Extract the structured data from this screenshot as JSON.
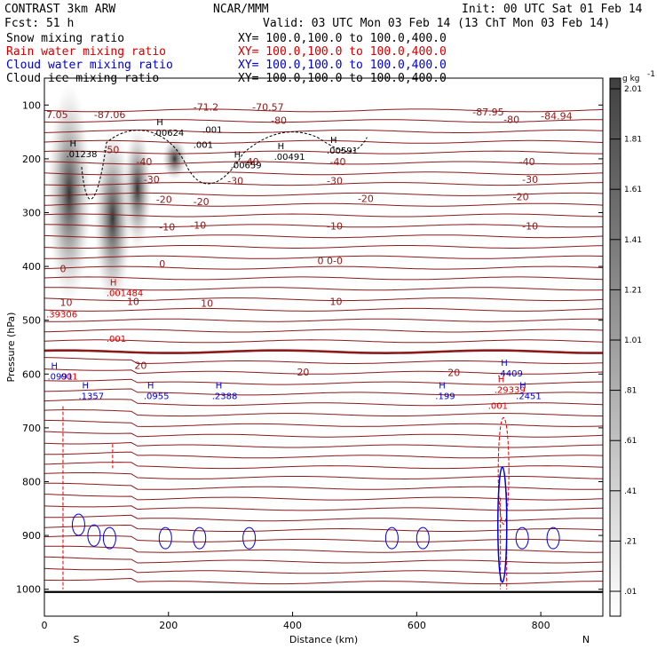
{
  "header": {
    "line1_left": "CONTRAST  3km ARW",
    "line1_center": "NCAR/MMM",
    "line1_right": "Init: 00 UTC Sat 01 Feb 14",
    "line2_left": "Fcst:   51 h",
    "line2_right": "Valid: 03 UTC Mon 03 Feb 14 (13 ChT Mon 03 Feb 14)",
    "legend": [
      {
        "label": "Snow mixing ratio",
        "xy": "XY=  100.0,100.0 to 100.0,400.0",
        "color": "#000000"
      },
      {
        "label": "Rain water mixing ratio",
        "xy": "XY=  100.0,100.0 to 100.0,400.0",
        "color": "#cc0000"
      },
      {
        "label": "Cloud water mixing ratio",
        "xy": "XY=  100.0,100.0 to 100.0,400.0",
        "color": "#0000cc"
      },
      {
        "label": "Cloud ice mixing ratio",
        "xy": "XY=  100.0,100.0 to 100.0,400.0",
        "color": "#000000"
      }
    ]
  },
  "colors": {
    "temperature": "#8b1a1a",
    "rain": "#dd0000",
    "cloud_water": "#0000dd",
    "cloud_ice": "#000000"
  },
  "chart_data": {
    "type": "cross-section",
    "xlabel": "Distance (km)",
    "ylabel": "Pressure (hPa)",
    "xlim": [
      0,
      900
    ],
    "ylim": [
      1050,
      50
    ],
    "x_ticks": [
      0,
      200,
      400,
      600,
      800
    ],
    "y_ticks": [
      100,
      200,
      300,
      400,
      500,
      600,
      700,
      800,
      900,
      1000
    ],
    "end_labels": {
      "left": "S",
      "right": "N"
    },
    "colorbar": {
      "units_label": "g kg",
      "units_exp": "-1",
      "levels": [
        ".01",
        ".21",
        ".41",
        ".61",
        ".81",
        "1.01",
        "1.21",
        "1.41",
        "1.61",
        "1.81",
        "2.01"
      ]
    },
    "temperature_isotherms": [
      {
        "label": "-80",
        "pressure": 128
      },
      {
        "label": "-70.57",
        "pressure": 103
      },
      {
        "label": "-71.2",
        "pressure": 103
      },
      {
        "label": "-50",
        "pressure": 183
      },
      {
        "label": "-40",
        "pressure": 207
      },
      {
        "label": "-30",
        "pressure": 238
      },
      {
        "label": "-20",
        "pressure": 277
      },
      {
        "label": "-10",
        "pressure": 325
      },
      {
        "label": "0",
        "pressure": 392
      },
      {
        "label": "10",
        "pressure": 466
      },
      {
        "label": "20",
        "pressure": 585
      }
    ],
    "temperature_labels": [
      {
        "text": "-87.06",
        "x": 80,
        "p": 118
      },
      {
        "text": "-71.2",
        "x": 240,
        "p": 104
      },
      {
        "text": "-70.57",
        "x": 335,
        "p": 104
      },
      {
        "text": "-80",
        "x": 365,
        "p": 128
      },
      {
        "text": "-87.95",
        "x": 690,
        "p": 113
      },
      {
        "text": "-80",
        "x": 740,
        "p": 127
      },
      {
        "text": "-84.94",
        "x": 800,
        "p": 120
      },
      {
        "text": "7.05",
        "x": 3,
        "p": 118
      },
      {
        "text": "-50",
        "x": 95,
        "p": 183
      },
      {
        "text": "-40",
        "x": 148,
        "p": 205
      },
      {
        "text": "-40",
        "x": 320,
        "p": 205
      },
      {
        "text": "-40",
        "x": 460,
        "p": 205
      },
      {
        "text": "-40",
        "x": 765,
        "p": 205
      },
      {
        "text": "-30",
        "x": 160,
        "p": 238
      },
      {
        "text": "-30",
        "x": 295,
        "p": 241
      },
      {
        "text": "-30",
        "x": 455,
        "p": 241
      },
      {
        "text": "-30",
        "x": 770,
        "p": 238
      },
      {
        "text": "-20",
        "x": 180,
        "p": 275
      },
      {
        "text": "-20",
        "x": 240,
        "p": 279
      },
      {
        "text": "-20",
        "x": 505,
        "p": 274
      },
      {
        "text": "-20",
        "x": 755,
        "p": 270
      },
      {
        "text": "-10",
        "x": 185,
        "p": 326
      },
      {
        "text": "-10",
        "x": 235,
        "p": 323
      },
      {
        "text": "-10",
        "x": 455,
        "p": 325
      },
      {
        "text": "-10",
        "x": 770,
        "p": 325
      },
      {
        "text": "0",
        "x": 25,
        "p": 404
      },
      {
        "text": "0",
        "x": 185,
        "p": 395
      },
      {
        "text": "0",
        "x": 440,
        "p": 389
      },
      {
        "text": "0-0",
        "x": 455,
        "p": 389
      },
      {
        "text": "10",
        "x": 25,
        "p": 467
      },
      {
        "text": "10",
        "x": 133,
        "p": 465
      },
      {
        "text": "10",
        "x": 252,
        "p": 468
      },
      {
        "text": "10",
        "x": 460,
        "p": 465
      },
      {
        "text": "20",
        "x": 145,
        "p": 584
      },
      {
        "text": "20",
        "x": 407,
        "p": 596
      },
      {
        "text": "20",
        "x": 650,
        "p": 597
      }
    ],
    "extrema_labels": [
      {
        "kind": "H",
        "value": ".00624",
        "x": 175,
        "p": 142,
        "color": "#000000"
      },
      {
        "kind": "H",
        "value": ".01238",
        "x": 35,
        "p": 182,
        "color": "#000000"
      },
      {
        "kind": "",
        "value": ".001",
        "x": 255,
        "p": 137,
        "color": "#000000"
      },
      {
        "kind": "",
        "value": ".001",
        "x": 240,
        "p": 165,
        "color": "#000000"
      },
      {
        "kind": "H",
        "value": ".00659",
        "x": 300,
        "p": 203,
        "color": "#000000"
      },
      {
        "kind": "H",
        "value": ".00491",
        "x": 370,
        "p": 187,
        "color": "#000000"
      },
      {
        "kind": "H",
        "value": ".00591",
        "x": 455,
        "p": 175,
        "color": "#000000"
      },
      {
        "kind": "H",
        "value": ".001484",
        "x": 100,
        "p": 440,
        "color": "#dd0000"
      },
      {
        "kind": "",
        "value": ".39306",
        "x": 3,
        "p": 480,
        "color": "#dd0000"
      },
      {
        "kind": "",
        "value": ".001",
        "x": 100,
        "p": 525,
        "color": "#dd0000"
      },
      {
        "kind": "",
        "value": ".001",
        "x": 22,
        "p": 595,
        "color": "#dd0000"
      },
      {
        "kind": "H",
        "value": ".0991",
        "x": 5,
        "p": 595,
        "color": "#0000dd"
      },
      {
        "kind": "H",
        "value": ".1357",
        "x": 55,
        "p": 632,
        "color": "#0000dd"
      },
      {
        "kind": "H",
        "value": ".0955",
        "x": 160,
        "p": 632,
        "color": "#0000dd"
      },
      {
        "kind": "H",
        "value": ".2388",
        "x": 270,
        "p": 632,
        "color": "#0000dd"
      },
      {
        "kind": "H",
        "value": ".199",
        "x": 630,
        "p": 632,
        "color": "#0000dd"
      },
      {
        "kind": "H",
        "value": ".4409",
        "x": 730,
        "p": 590,
        "color": "#0000dd"
      },
      {
        "kind": "H",
        "value": ".29339",
        "x": 725,
        "p": 620,
        "color": "#dd0000"
      },
      {
        "kind": "",
        "value": ".001",
        "x": 715,
        "p": 650,
        "color": "#dd0000"
      },
      {
        "kind": "H",
        "value": ".2451",
        "x": 760,
        "p": 632,
        "color": "#0000dd"
      }
    ],
    "snow_plumes": [
      {
        "x": 40,
        "top": 60,
        "bottom": 470,
        "width": 70
      },
      {
        "x": 110,
        "top": 140,
        "bottom": 480,
        "width": 60
      },
      {
        "x": 150,
        "top": 140,
        "bottom": 370,
        "width": 45
      },
      {
        "x": 210,
        "top": 160,
        "bottom": 240,
        "width": 40
      }
    ]
  }
}
